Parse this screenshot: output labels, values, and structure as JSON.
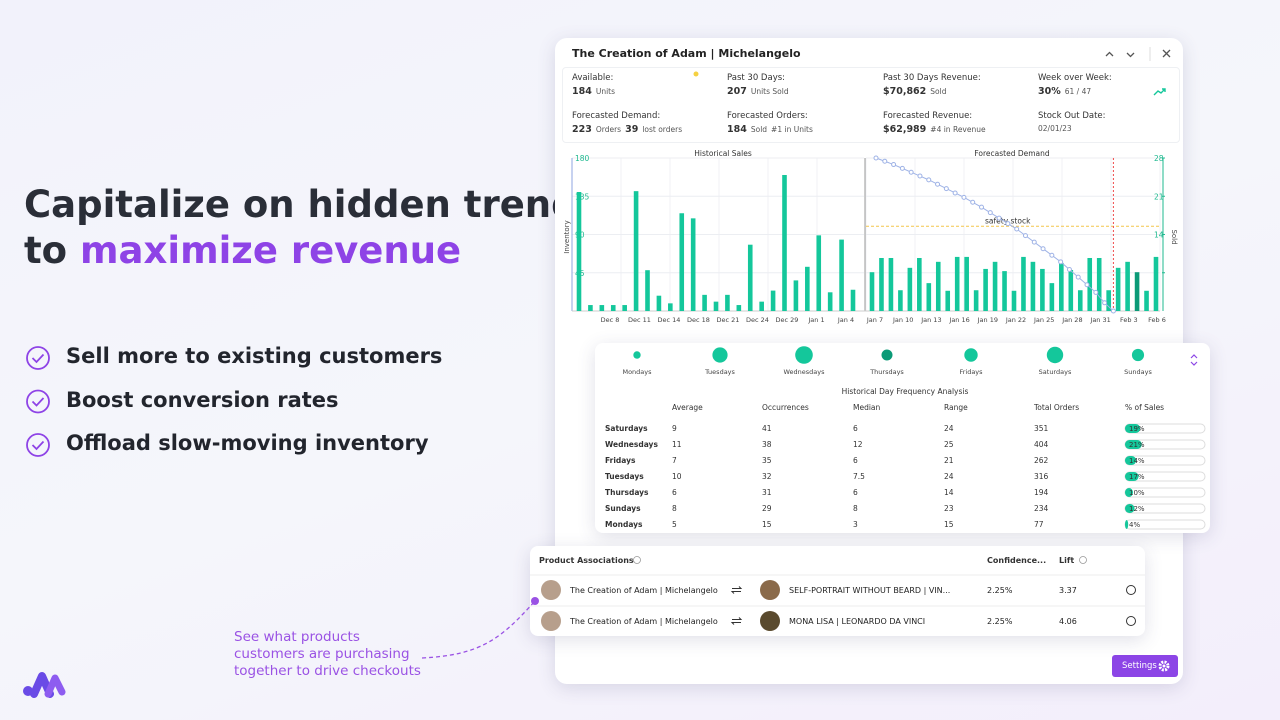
{
  "header": {
    "line1": "Capitalize on hidden trends",
    "line2_prefix": "to",
    "line2_highlight": "maximize revenue"
  },
  "bullets": [
    "Sell more to existing customers",
    "Boost conversion rates",
    "Offload slow-moving inventory"
  ],
  "annotation": [
    "See what products",
    "customers are purchasing",
    "together to drive checkouts"
  ],
  "panel": {
    "title": "The Creation of Adam | Michelangelo",
    "stats": [
      {
        "label": "Available:",
        "value": "184",
        "unit": "Units"
      },
      {
        "label": "Past 30 Days:",
        "value": "207",
        "unit": "Units Sold"
      },
      {
        "label": "Past 30 Days Revenue:",
        "value": "$70,862",
        "unit": "Sold"
      },
      {
        "label": "Week over Week:",
        "value": "30%",
        "unit": "61  /  47"
      },
      {
        "label": "Forecasted Demand:",
        "value": "223",
        "unit": "Orders",
        "value2": "39",
        "unit2": "lost orders"
      },
      {
        "label": "Forecasted Orders:",
        "value": "184",
        "unit": "Sold",
        "unit2": "#1 in Units"
      },
      {
        "label": "Forecasted Revenue:",
        "value": "$62,989",
        "unit2": "#4 in Revenue"
      },
      {
        "label": "Stock Out Date:",
        "unit": "02/01/23"
      }
    ],
    "settings": "Settings"
  },
  "sales_chart": {
    "type": "bar",
    "left_title": "Historical Sales",
    "right_title": "Forecasted Demand",
    "y_label": "Inventory",
    "y2_label": "Sold",
    "color": "#14c79b",
    "highlight_color": "#0b9a77",
    "historical": [
      140,
      7,
      7,
      7,
      7,
      141,
      48,
      18,
      9,
      115,
      109,
      19,
      11,
      19,
      7,
      78,
      11,
      24,
      160,
      36,
      52,
      89,
      22,
      84,
      25
    ],
    "forecast": [
      7.1,
      9.7,
      9.7,
      3.8,
      7.9,
      9.7,
      5.1,
      9,
      3.7,
      9.9,
      9.9,
      3.8,
      7.7,
      9,
      7.3,
      3.7,
      9.9,
      9,
      7.7,
      5.1,
      8.8,
      7.5,
      3.8,
      9.7,
      9.7,
      3.8,
      7.9,
      9,
      7.1,
      3.7,
      9.9
    ],
    "highlight_index": 28,
    "forecast_line": [
      28,
      27.4,
      26.8,
      26.1,
      25.4,
      24.7,
      24,
      23.2,
      22.4,
      21.6,
      20.8,
      19.9,
      19,
      18,
      17,
      16,
      15,
      13.8,
      12.6,
      11.4,
      10.2,
      9,
      7.6,
      6.2,
      4.8,
      3.4,
      1.5,
      0
    ],
    "line_color": "#9fb3e6",
    "safety_stock": {
      "label": "safety stock",
      "value": 15.5
    },
    "stockout_index": 25,
    "ylim": [
      0,
      180
    ],
    "yticks": [
      45,
      90,
      135,
      180
    ],
    "y2lim": [
      0,
      28
    ],
    "y2ticks": [
      7,
      14,
      21,
      28
    ],
    "x_ticks_left": [
      "Dec 8",
      "Dec 11",
      "Dec 14",
      "Dec 18",
      "Dec 21",
      "Dec 24",
      "Dec 29",
      "Jan 1",
      "Jan 4"
    ],
    "x_ticks_right": [
      "Jan 7",
      "Jan 10",
      "Jan 13",
      "Jan 16",
      "Jan 19",
      "Jan 22",
      "Jan 25",
      "Jan 28",
      "Jan 31",
      "Feb 3",
      "Feb 6"
    ]
  },
  "days": {
    "names": [
      "Mondays",
      "Tuesdays",
      "Wednesdays",
      "Thursdays",
      "Fridays",
      "Saturdays",
      "Sundays"
    ],
    "selected_index": 3
  },
  "table": {
    "title": "Historical Day Frequency Analysis",
    "columns": [
      "Average",
      "Occurrences",
      "Median",
      "Range",
      "Total Orders",
      "% of Sales"
    ],
    "rows": [
      [
        "Saturdays",
        "9",
        "41",
        "6",
        "24",
        "351"
      ],
      [
        "Wednesdays",
        "11",
        "38",
        "12",
        "25",
        "404"
      ],
      [
        "Fridays",
        "7",
        "35",
        "6",
        "21",
        "262"
      ],
      [
        "Tuesdays",
        "10",
        "32",
        "7.5",
        "24",
        "316"
      ],
      [
        "Thursdays",
        "6",
        "31",
        "6",
        "14",
        "194"
      ],
      [
        "Sundays",
        "8",
        "29",
        "8",
        "23",
        "234"
      ],
      [
        "Mondays",
        "5",
        "15",
        "3",
        "15",
        "77"
      ]
    ],
    "share": {
      "values": [
        19,
        21,
        14,
        17,
        10,
        12,
        4
      ],
      "value_labels": [
        "19%",
        "21%",
        "14%",
        "17%",
        "10%",
        "12%",
        "4%"
      ]
    }
  },
  "associations": {
    "columns": [
      "Product Associations",
      "Confidence...",
      "Lift"
    ],
    "rows": [
      {
        "product": "The Creation of Adam | Michelangelo",
        "related": "SELF-PORTRAIT WITHOUT BEARD | VIN...",
        "confidence": "2.25%",
        "lift": "3.37"
      },
      {
        "product": "The Creation of Adam | Michelangelo",
        "related": "MONA LISA | LEONARDO DA VINCI",
        "confidence": "2.25%",
        "lift": "4.06"
      }
    ]
  }
}
